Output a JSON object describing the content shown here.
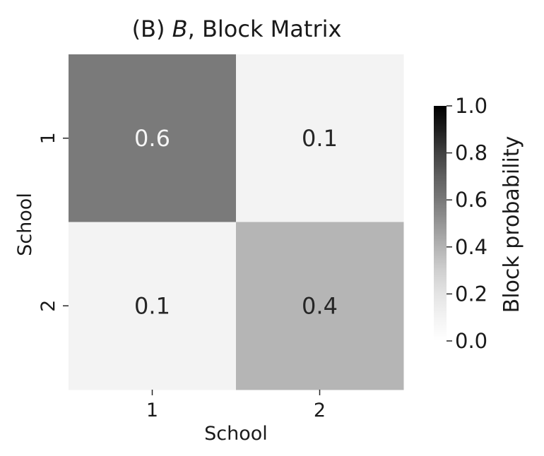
{
  "chart_data": {
    "type": "heatmap",
    "title_prefix": "(B) ",
    "title_italic": "B",
    "title_suffix": ", Block Matrix",
    "xlabel": "School",
    "ylabel": "School",
    "x_categories": [
      "1",
      "2"
    ],
    "y_categories": [
      "1",
      "2"
    ],
    "values": [
      [
        0.6,
        0.1
      ],
      [
        0.1,
        0.4
      ]
    ],
    "value_labels": [
      [
        "0.6",
        "0.1"
      ],
      [
        "0.1",
        "0.4"
      ]
    ],
    "colorbar": {
      "label": "Block probability",
      "range": [
        0.0,
        1.0
      ],
      "ticks": [
        0.0,
        0.2,
        0.4,
        0.6,
        0.8,
        1.0
      ],
      "tick_labels": [
        "0.0",
        "0.2",
        "0.4",
        "0.6",
        "0.8",
        "1.0"
      ],
      "colormap": "Greys",
      "color_low": "#ffffff",
      "color_high": "#000000"
    },
    "grid": false,
    "legend": "colorbar-right"
  }
}
